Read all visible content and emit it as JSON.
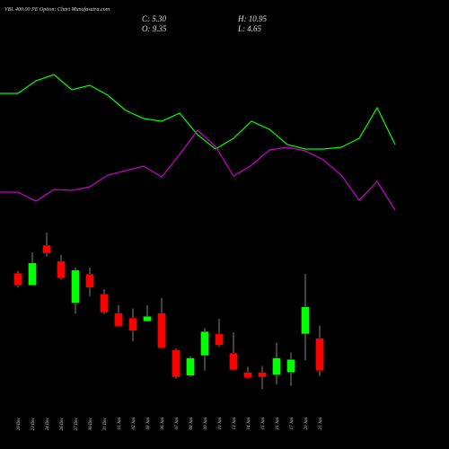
{
  "title": "VBL 400.00 PE Option: Chart Munafasutra.com",
  "ohlc": {
    "close": "C: 5.30",
    "high": "H: 10.95",
    "open": "O: 9.35",
    "low": "L: 4.65"
  },
  "chart_data": [
    {
      "type": "line",
      "ylim": [
        0,
        200
      ],
      "series": [
        {
          "color": "#00ff00",
          "values": [
            136,
            136,
            150,
            157,
            140,
            145,
            134,
            117,
            108,
            105,
            114,
            90,
            74,
            86,
            105,
            96,
            79,
            74,
            74,
            76,
            86,
            120,
            79
          ]
        },
        {
          "color": "#cc00cc",
          "values": [
            26,
            26,
            16,
            29,
            28,
            32,
            45,
            50,
            55,
            43,
            68,
            95,
            77,
            44,
            56,
            73,
            76,
            72,
            62,
            45,
            17,
            38,
            6
          ]
        }
      ]
    },
    {
      "type": "candlestick",
      "ylim": [
        0,
        23.6
      ],
      "up_color": "#00ff00",
      "down_color": "#ff0000",
      "categories": [
        "20 Dec",
        "23 Dec",
        "24 Dec",
        "26 Dec",
        "27 Dec",
        "30 Dec",
        "31 Dec",
        "01 Jan",
        "02 Jan",
        "03 Jan",
        "06 Jan",
        "07 Jan",
        "08 Jan",
        "09 Jan",
        "10 Jan",
        "13 Jan",
        "14 Jan",
        "15 Jan",
        "16 Jan",
        "17 Jan",
        "20 Jan",
        "21 Jan"
      ],
      "open": [
        17.5,
        16.0,
        21.0,
        19.0,
        13.8,
        17.4,
        14.9,
        12.5,
        11.9,
        11.5,
        12.5,
        7.9,
        4.7,
        7.2,
        9.9,
        7.5,
        5.1,
        5.1,
        4.8,
        5.1,
        9.9,
        9.35
      ],
      "high": [
        17.8,
        20.1,
        22.6,
        19.8,
        18.2,
        18.2,
        15.5,
        13.5,
        13.1,
        13.5,
        14.4,
        8.1,
        7.1,
        10.6,
        11.8,
        10.1,
        5.8,
        5.9,
        8.8,
        7.6,
        17.4,
        10.95
      ],
      "low": [
        15.7,
        16.0,
        19.6,
        16.7,
        12.4,
        14.6,
        12.4,
        10.8,
        9.0,
        11.5,
        8.1,
        4.3,
        4.5,
        5.3,
        8.3,
        5.3,
        4.3,
        3.0,
        3.6,
        3.4,
        6.6,
        4.65
      ],
      "close": [
        16.0,
        18.8,
        20.0,
        16.9,
        17.9,
        15.7,
        12.6,
        10.9,
        10.3,
        12.1,
        8.2,
        4.5,
        6.9,
        10.2,
        8.5,
        5.4,
        4.4,
        4.5,
        6.9,
        6.7,
        13.3,
        5.3
      ]
    }
  ]
}
